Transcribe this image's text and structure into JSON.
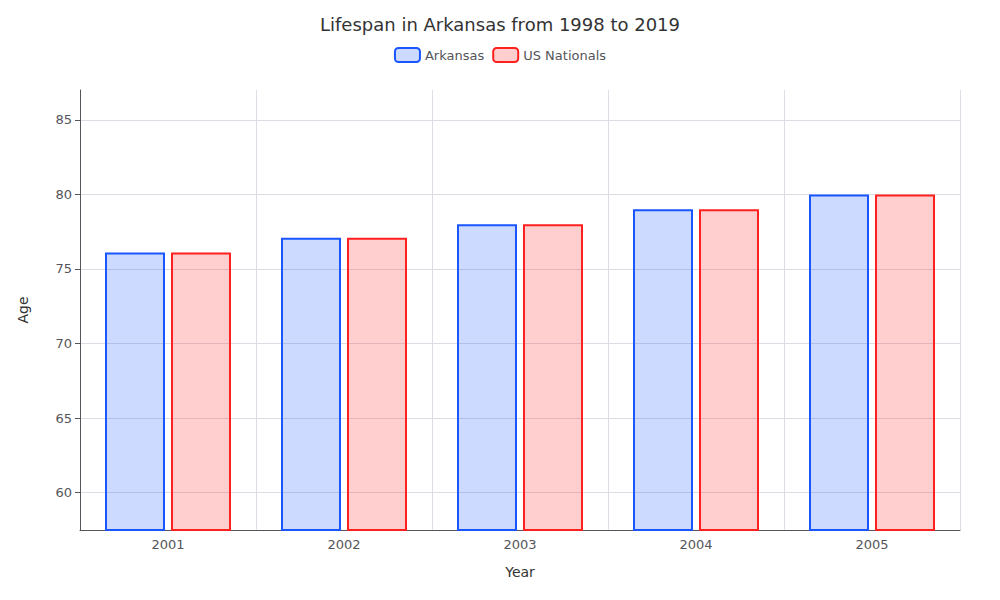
{
  "chart_data": {
    "type": "bar",
    "title": "Lifespan in Arkansas from 1998 to 2019",
    "xlabel": "Year",
    "ylabel": "Age",
    "categories": [
      "2001",
      "2002",
      "2003",
      "2004",
      "2005"
    ],
    "series": [
      {
        "name": "Arkansas",
        "color": "#1a56ff",
        "values": [
          76.1,
          77.1,
          78.0,
          79.0,
          80.0
        ]
      },
      {
        "name": "US Nationals",
        "color": "#ff2020",
        "values": [
          76.1,
          77.1,
          78.0,
          79.0,
          80.0
        ]
      }
    ],
    "ylim": [
      57.5,
      87
    ],
    "yticks": [
      60,
      65,
      70,
      75,
      80,
      85
    ],
    "grid": true,
    "legend": "top"
  }
}
